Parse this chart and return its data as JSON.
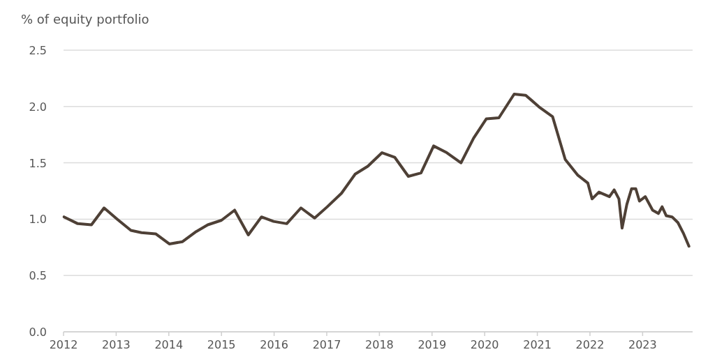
{
  "chart_data": {
    "type": "line",
    "ylabel": "% of equity portfolio",
    "x": [
      2012.01,
      2012.27,
      2012.53,
      2012.77,
      2013.02,
      2013.28,
      2013.48,
      2013.75,
      2014.01,
      2014.26,
      2014.52,
      2014.74,
      2015.0,
      2015.25,
      2015.51,
      2015.76,
      2015.99,
      2016.24,
      2016.51,
      2016.77,
      2017.01,
      2017.28,
      2017.54,
      2017.78,
      2018.05,
      2018.29,
      2018.55,
      2018.79,
      2019.03,
      2019.28,
      2019.55,
      2019.79,
      2020.03,
      2020.27,
      2020.56,
      2020.78,
      2021.05,
      2021.29,
      2021.53,
      2021.77,
      2021.96,
      2022.04,
      2022.17,
      2022.37,
      2022.46,
      2022.55,
      2022.61,
      2022.7,
      2022.79,
      2022.87,
      2022.94,
      2023.05,
      2023.19,
      2023.3,
      2023.37,
      2023.45,
      2023.56,
      2023.67,
      2023.78,
      2023.88
    ],
    "series": [
      {
        "color": "#4e4036",
        "values": [
          1.02,
          0.96,
          0.95,
          1.1,
          1.0,
          0.9,
          0.88,
          0.87,
          0.78,
          0.8,
          0.89,
          0.95,
          0.99,
          1.08,
          0.86,
          1.02,
          0.98,
          0.96,
          1.1,
          1.01,
          1.11,
          1.23,
          1.4,
          1.47,
          1.59,
          1.55,
          1.38,
          1.41,
          1.65,
          1.59,
          1.5,
          1.72,
          1.89,
          1.9,
          2.11,
          2.1,
          1.99,
          1.91,
          1.53,
          1.39,
          1.32,
          1.18,
          1.24,
          1.2,
          1.26,
          1.18,
          0.92,
          1.13,
          1.27,
          1.27,
          1.16,
          1.2,
          1.08,
          1.05,
          1.11,
          1.03,
          1.02,
          0.97,
          0.87,
          0.76
        ]
      }
    ],
    "xlim": [
      2012,
      2023.95
    ],
    "xticks": [
      2012,
      2013,
      2014,
      2015,
      2016,
      2017,
      2018,
      2019,
      2020,
      2021,
      2022,
      2023
    ],
    "ylim": [
      0,
      2.5
    ],
    "yticks": [
      {
        "value": 0,
        "label": "0.0"
      },
      {
        "value": 0.5,
        "label": "0.5"
      },
      {
        "value": 1,
        "label": "1.0"
      },
      {
        "value": 1.5,
        "label": "1.5"
      },
      {
        "value": 2,
        "label": "2.0"
      },
      {
        "value": 2.5,
        "label": "2.5"
      }
    ],
    "grid": "y",
    "marker": "none",
    "line_style": "solid"
  }
}
